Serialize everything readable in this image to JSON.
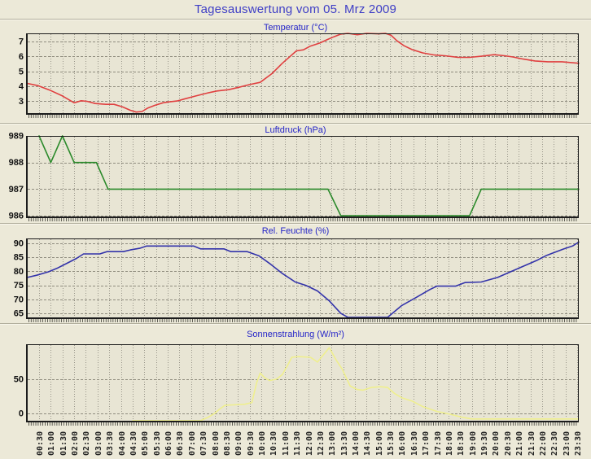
{
  "page": {
    "title": "Tagesauswertung vom 05. Mrz 2009"
  },
  "x_axis": {
    "labels": [
      "00:30",
      "01:00",
      "01:30",
      "02:00",
      "02:30",
      "03:00",
      "03:30",
      "04:00",
      "04:30",
      "05:00",
      "05:30",
      "06:00",
      "06:30",
      "07:00",
      "07:30",
      "08:00",
      "08:30",
      "09:00",
      "09:30",
      "10:00",
      "10:30",
      "11:00",
      "11:30",
      "12:00",
      "12:30",
      "13:00",
      "13:30",
      "14:00",
      "14:30",
      "15:00",
      "15:30",
      "16:00",
      "16:30",
      "17:00",
      "17:30",
      "18:00",
      "18:30",
      "19:00",
      "19:30",
      "20:00",
      "20:30",
      "21:00",
      "21:30",
      "22:00",
      "22:30",
      "23:00",
      "23:30"
    ]
  },
  "colors": {
    "page_bg": "#ece9d8",
    "plot_bg": "#e8e5d4",
    "grid": "#99968a",
    "frame": "#1c1c1c",
    "title_blue": "#3f3fc6"
  },
  "chart_data": [
    {
      "type": "line",
      "title": "Temperatur (°C)",
      "color": "#e04040",
      "ylim": [
        2.1,
        7.55
      ],
      "yticks": [
        3,
        4,
        5,
        6,
        7
      ],
      "grid": true,
      "points": [
        [
          0.0,
          4.2
        ],
        [
          0.45,
          4.05
        ],
        [
          1.0,
          3.72
        ],
        [
          1.5,
          3.36
        ],
        [
          1.85,
          3.04
        ],
        [
          2.0,
          2.9
        ],
        [
          2.3,
          3.04
        ],
        [
          2.55,
          3.0
        ],
        [
          2.9,
          2.85
        ],
        [
          3.35,
          2.8
        ],
        [
          3.7,
          2.8
        ],
        [
          4.05,
          2.64
        ],
        [
          4.4,
          2.4
        ],
        [
          4.65,
          2.28
        ],
        [
          4.9,
          2.32
        ],
        [
          5.15,
          2.55
        ],
        [
          5.45,
          2.73
        ],
        [
          5.8,
          2.9
        ],
        [
          6.05,
          2.96
        ],
        [
          6.4,
          3.02
        ],
        [
          6.7,
          3.15
        ],
        [
          7.2,
          3.36
        ],
        [
          7.65,
          3.54
        ],
        [
          8.1,
          3.69
        ],
        [
          8.6,
          3.78
        ],
        [
          9.05,
          3.94
        ],
        [
          9.5,
          4.12
        ],
        [
          9.95,
          4.27
        ],
        [
          10.45,
          4.85
        ],
        [
          10.9,
          5.55
        ],
        [
          11.5,
          6.38
        ],
        [
          11.8,
          6.45
        ],
        [
          12.1,
          6.7
        ],
        [
          12.5,
          6.9
        ],
        [
          12.8,
          7.12
        ],
        [
          13.1,
          7.32
        ],
        [
          13.4,
          7.5
        ],
        [
          13.7,
          7.55
        ],
        [
          14.1,
          7.46
        ],
        [
          14.5,
          7.55
        ],
        [
          15.0,
          7.52
        ],
        [
          15.3,
          7.55
        ],
        [
          15.55,
          7.42
        ],
        [
          15.8,
          7.05
        ],
        [
          16.1,
          6.72
        ],
        [
          16.45,
          6.46
        ],
        [
          16.9,
          6.24
        ],
        [
          17.4,
          6.1
        ],
        [
          17.85,
          6.05
        ],
        [
          18.4,
          5.95
        ],
        [
          18.9,
          5.94
        ],
        [
          19.45,
          6.03
        ],
        [
          19.95,
          6.12
        ],
        [
          20.4,
          6.05
        ],
        [
          20.75,
          5.97
        ],
        [
          21.2,
          5.83
        ],
        [
          21.7,
          5.7
        ],
        [
          22.25,
          5.65
        ],
        [
          22.85,
          5.65
        ],
        [
          23.4,
          5.57
        ],
        [
          23.57,
          5.55
        ]
      ]
    },
    {
      "type": "line",
      "title": "Luftdruck (hPa)",
      "color": "#2b8a2b",
      "ylim": [
        985.91,
        989.0
      ],
      "yticks": [
        986,
        987,
        988,
        989
      ],
      "grid": true,
      "points": [
        [
          0.5,
          989
        ],
        [
          1.0,
          988
        ],
        [
          1.5,
          989
        ],
        [
          2.0,
          988
        ],
        [
          2.95,
          988
        ],
        [
          3.45,
          987
        ],
        [
          12.85,
          987
        ],
        [
          13.4,
          986
        ],
        [
          18.9,
          986
        ],
        [
          19.4,
          987
        ],
        [
          23.57,
          987
        ]
      ]
    },
    {
      "type": "line",
      "title": "Rel. Feuchte (%)",
      "color": "#3333aa",
      "ylim": [
        63.0,
        91.7
      ],
      "yticks": [
        65,
        70,
        75,
        80,
        85,
        90
      ],
      "grid": true,
      "points": [
        [
          0.0,
          77.8
        ],
        [
          0.4,
          78.6
        ],
        [
          0.9,
          79.8
        ],
        [
          1.3,
          81.2
        ],
        [
          1.7,
          82.9
        ],
        [
          2.1,
          84.6
        ],
        [
          2.4,
          86.2
        ],
        [
          3.1,
          86.2
        ],
        [
          3.4,
          87.0
        ],
        [
          4.1,
          87.0
        ],
        [
          4.4,
          87.6
        ],
        [
          4.8,
          88.2
        ],
        [
          5.1,
          89.0
        ],
        [
          7.1,
          89.0
        ],
        [
          7.4,
          88.0
        ],
        [
          8.4,
          88.0
        ],
        [
          8.7,
          87.0
        ],
        [
          9.4,
          87.0
        ],
        [
          9.9,
          85.5
        ],
        [
          10.4,
          82.5
        ],
        [
          10.9,
          79.2
        ],
        [
          11.45,
          76.2
        ],
        [
          11.9,
          75.0
        ],
        [
          12.4,
          73.0
        ],
        [
          12.9,
          69.5
        ],
        [
          13.4,
          65.0
        ],
        [
          13.7,
          63.6
        ],
        [
          15.4,
          63.6
        ],
        [
          16.0,
          67.8
        ],
        [
          16.6,
          70.6
        ],
        [
          17.2,
          73.5
        ],
        [
          17.5,
          74.7
        ],
        [
          18.3,
          74.7
        ],
        [
          18.7,
          76.0
        ],
        [
          19.4,
          76.2
        ],
        [
          20.1,
          77.8
        ],
        [
          20.7,
          80.0
        ],
        [
          21.2,
          81.8
        ],
        [
          21.8,
          84.0
        ],
        [
          22.2,
          85.7
        ],
        [
          22.9,
          87.9
        ],
        [
          23.3,
          89.0
        ],
        [
          23.57,
          90.4
        ]
      ]
    },
    {
      "type": "line",
      "title": "Sonnenstrahlung (W/m²)",
      "color": "#efef8e",
      "ylim": [
        -13,
        101
      ],
      "yticks": [
        0,
        50
      ],
      "grid": true,
      "points": [
        [
          4.5,
          -10.5
        ],
        [
          7.4,
          -10.5
        ],
        [
          7.7,
          -6
        ],
        [
          8.0,
          0
        ],
        [
          8.2,
          6
        ],
        [
          8.45,
          12
        ],
        [
          8.8,
          12.5
        ],
        [
          9.3,
          13.5
        ],
        [
          9.6,
          16
        ],
        [
          9.8,
          45
        ],
        [
          9.95,
          59
        ],
        [
          10.15,
          52
        ],
        [
          10.35,
          48
        ],
        [
          10.65,
          50
        ],
        [
          10.9,
          57
        ],
        [
          11.15,
          72
        ],
        [
          11.3,
          82
        ],
        [
          11.6,
          83
        ],
        [
          12.1,
          82
        ],
        [
          12.4,
          75
        ],
        [
          12.9,
          96
        ],
        [
          13.2,
          78
        ],
        [
          13.45,
          65
        ],
        [
          13.8,
          40
        ],
        [
          14.1,
          35
        ],
        [
          14.35,
          34
        ],
        [
          14.7,
          38
        ],
        [
          15.1,
          39
        ],
        [
          15.4,
          38
        ],
        [
          15.7,
          29
        ],
        [
          16.0,
          23
        ],
        [
          16.45,
          18
        ],
        [
          16.9,
          10
        ],
        [
          17.5,
          3
        ],
        [
          18.05,
          -1
        ],
        [
          18.65,
          -6
        ],
        [
          19.0,
          -8
        ],
        [
          23.57,
          -8
        ]
      ]
    }
  ]
}
